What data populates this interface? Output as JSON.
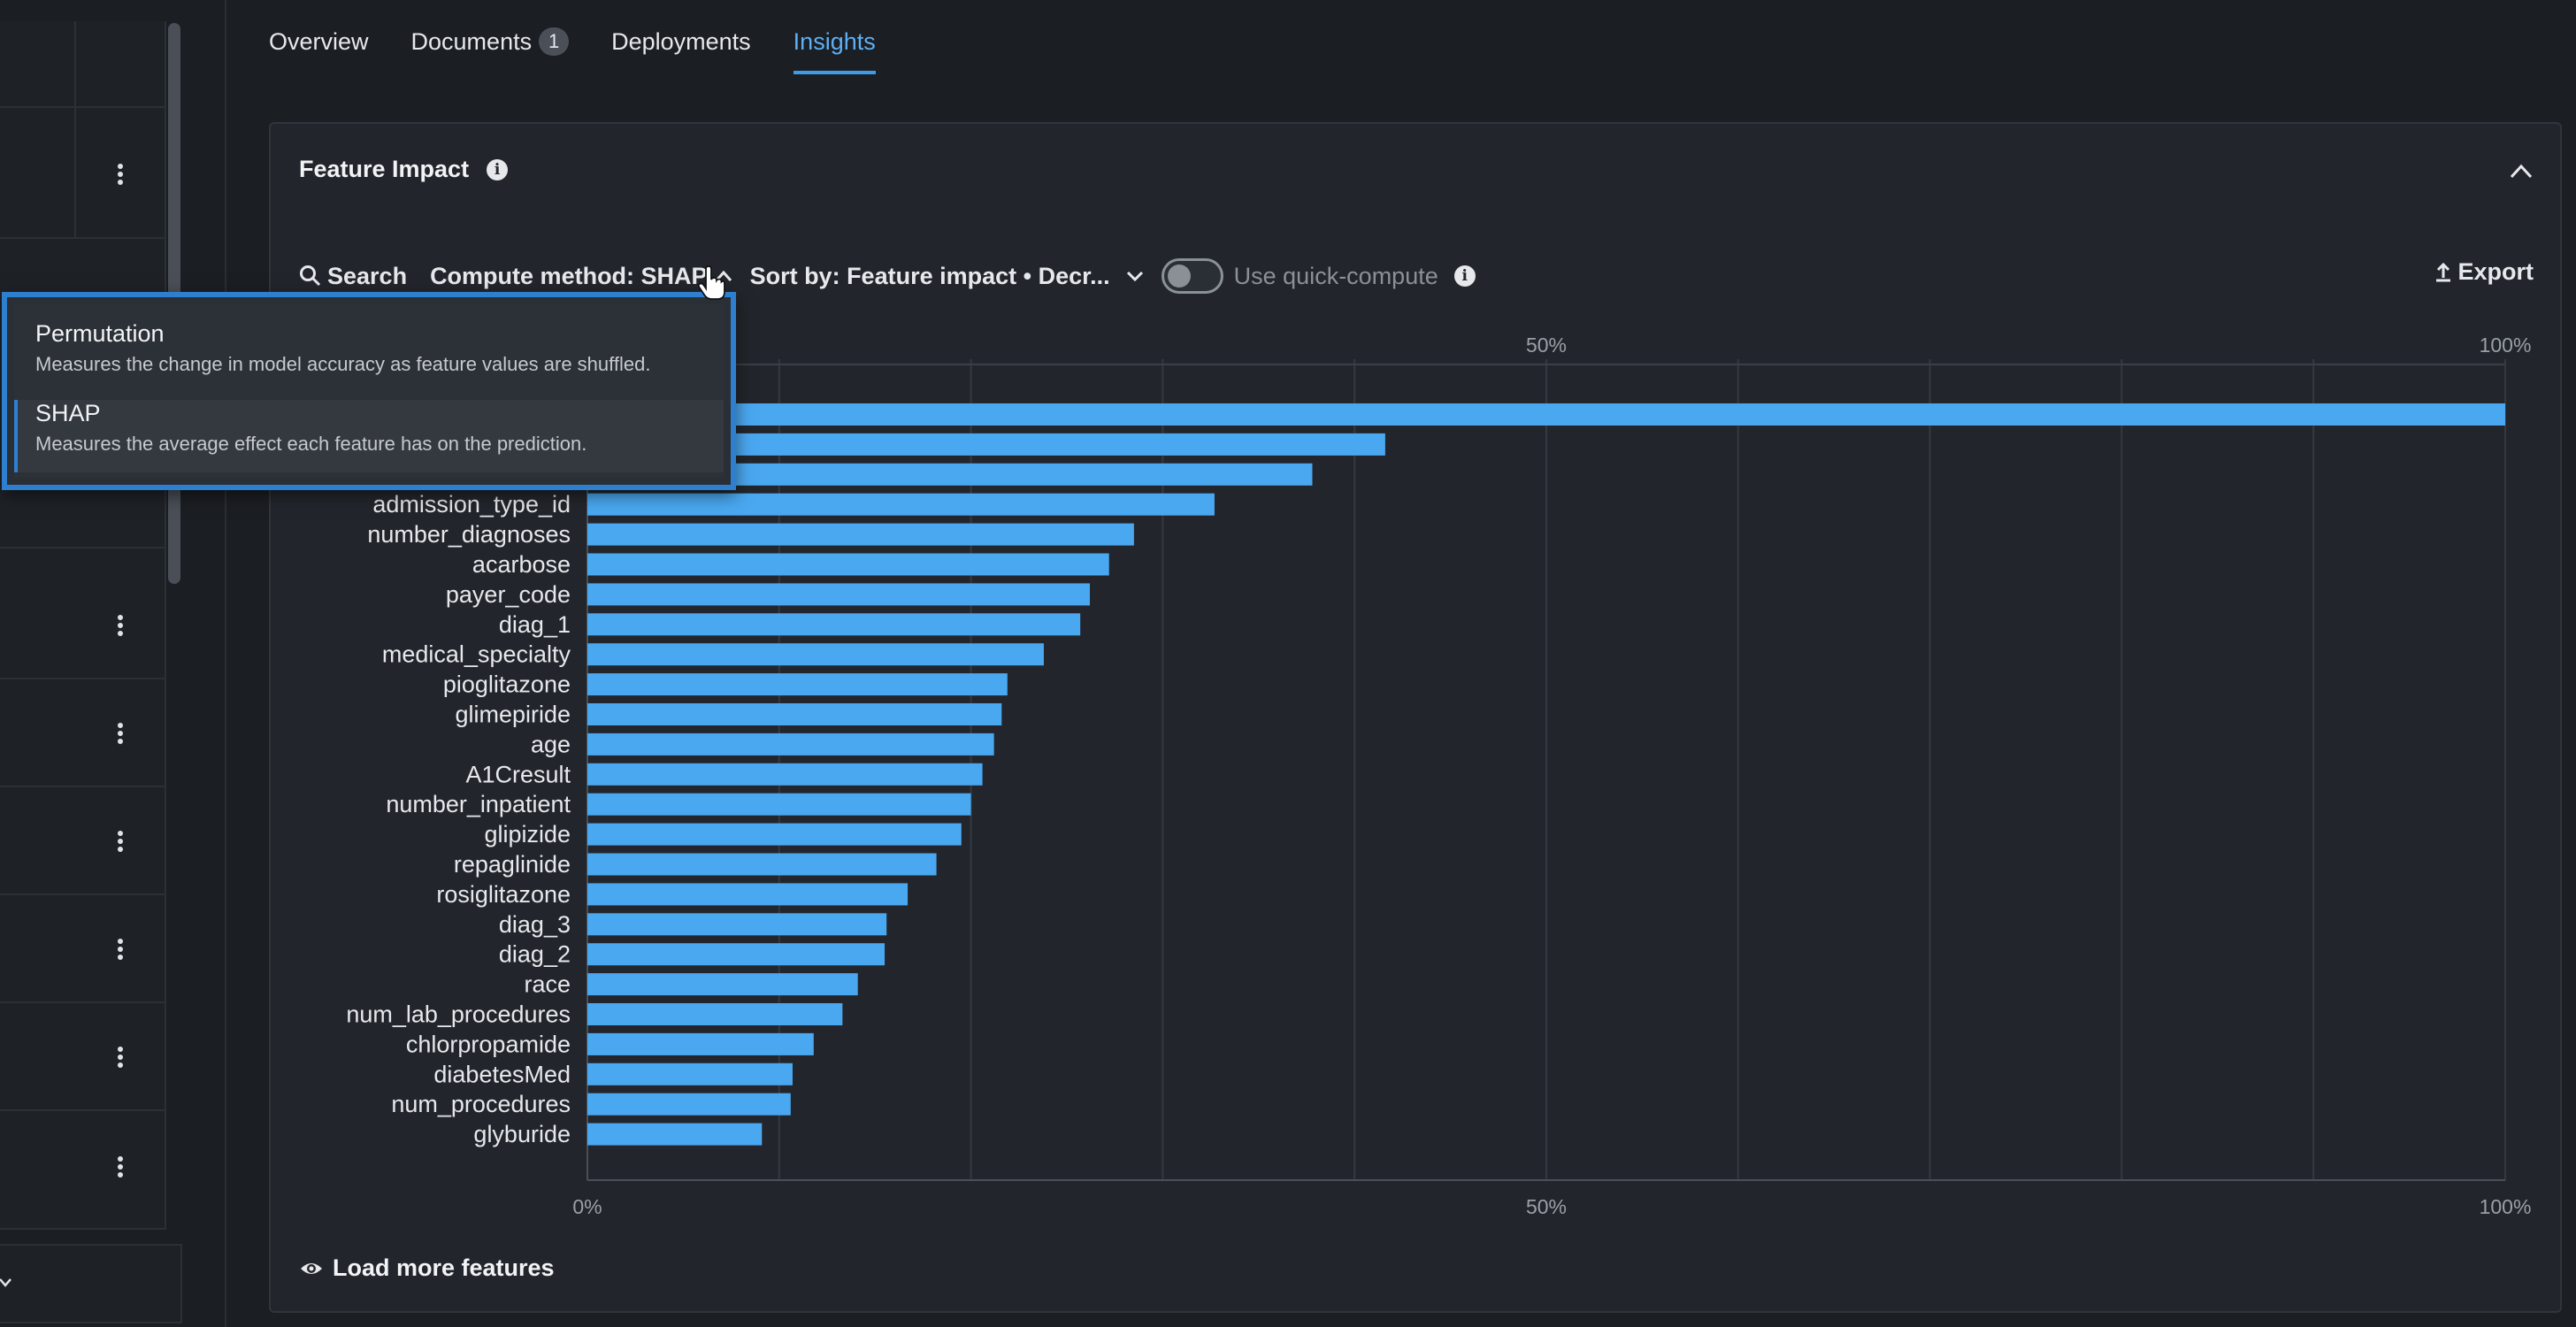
{
  "tabs": [
    {
      "label": "Overview"
    },
    {
      "label": "Documents",
      "badge": "1"
    },
    {
      "label": "Deployments"
    },
    {
      "label": "Insights",
      "active": true
    }
  ],
  "card": {
    "title": "Feature Impact",
    "info_icon": "info-icon",
    "collapse_icon": "chevron-up-icon"
  },
  "toolbar": {
    "search_label": "Search",
    "compute_method_label": "Compute method: SHAP",
    "sort_label": "Sort by: Feature impact • Decr...",
    "quick_compute_label": "Use quick-compute",
    "quick_compute_on": false,
    "export_label": "Export"
  },
  "dropdown": {
    "options": [
      {
        "label": "Permutation",
        "description": "Measures the change in model accuracy as feature values are shuffled.",
        "selected": false
      },
      {
        "label": "SHAP",
        "description": "Measures the average effect each feature has on the prediction.",
        "selected": true
      }
    ]
  },
  "load_more_label": "Load more features",
  "colors": {
    "bar": "#4aa8f0",
    "accent": "#3d9be9",
    "background": "#1b1e23",
    "card": "#22262c"
  },
  "chart_data": {
    "type": "bar",
    "orientation": "horizontal",
    "x_ticks_top": [
      "50%",
      "100%"
    ],
    "x_ticks_bottom": [
      "0%",
      "50%",
      "100%"
    ],
    "xlim": [
      0,
      100
    ],
    "grid": true,
    "categories": [
      "",
      "",
      "",
      "admission_type_id",
      "number_diagnoses",
      "acarbose",
      "payer_code",
      "diag_1",
      "medical_specialty",
      "pioglitazone",
      "glimepiride",
      "age",
      "A1Cresult",
      "number_inpatient",
      "glipizide",
      "repaglinide",
      "rosiglitazone",
      "diag_3",
      "diag_2",
      "race",
      "num_lab_procedures",
      "chlorpropamide",
      "diabetesMed",
      "num_procedures",
      "glyburide"
    ],
    "values": [
      100,
      41.6,
      37.8,
      32.7,
      28.5,
      27.2,
      26.2,
      25.7,
      23.8,
      21.9,
      21.6,
      21.2,
      20.6,
      20.0,
      19.5,
      18.2,
      16.7,
      15.6,
      15.5,
      14.1,
      13.3,
      11.8,
      10.7,
      10.6,
      9.1
    ]
  }
}
